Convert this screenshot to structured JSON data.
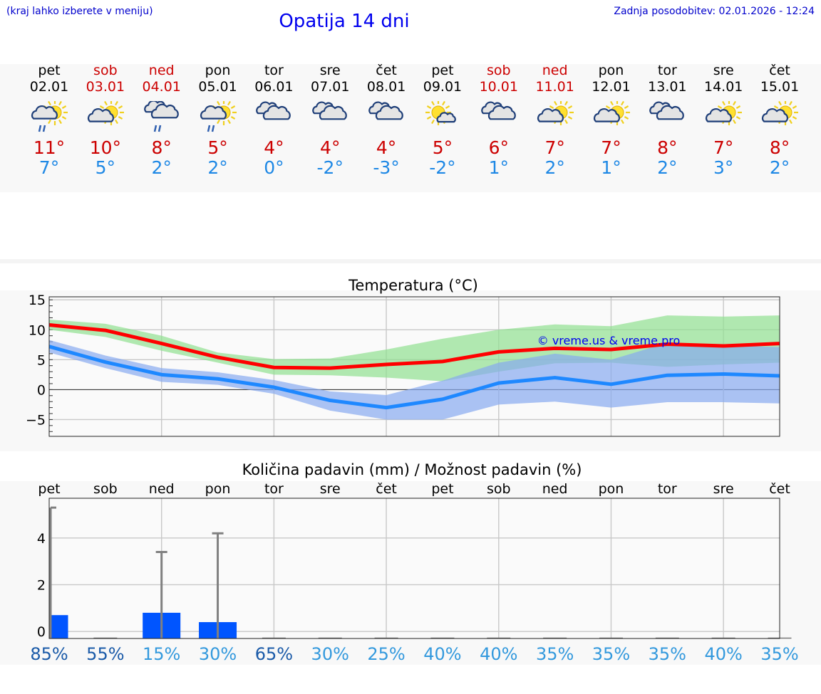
{
  "header": {
    "hint": "(kraj lahko izberete v meniju)",
    "title": "Opatija 14 dni",
    "updated": "Zadnja posodobitev: 02.01.2026 - 12:24"
  },
  "colors": {
    "hi": "#cc0000",
    "lo": "#1e88e5",
    "weekday": "#000000",
    "weekend": "#cc0000",
    "bar": "#0055ff"
  },
  "days": [
    {
      "wd": "pet",
      "date": "02.01",
      "weekend": false,
      "icon": "sun-cloud-rain-icon",
      "hi": "11°",
      "lo": "7°"
    },
    {
      "wd": "sob",
      "date": "03.01",
      "weekend": true,
      "icon": "sun-cloud-icon",
      "hi": "10°",
      "lo": "5°"
    },
    {
      "wd": "ned",
      "date": "04.01",
      "weekend": true,
      "icon": "cloud-rain-icon",
      "hi": "8°",
      "lo": "2°"
    },
    {
      "wd": "pon",
      "date": "05.01",
      "weekend": false,
      "icon": "sun-cloud-rain-icon",
      "hi": "5°",
      "lo": "2°"
    },
    {
      "wd": "tor",
      "date": "06.01",
      "weekend": false,
      "icon": "cloud-icon",
      "hi": "4°",
      "lo": "0°"
    },
    {
      "wd": "sre",
      "date": "07.01",
      "weekend": false,
      "icon": "cloud-icon",
      "hi": "4°",
      "lo": "-2°"
    },
    {
      "wd": "čet",
      "date": "08.01",
      "weekend": false,
      "icon": "cloud-icon",
      "hi": "4°",
      "lo": "-3°"
    },
    {
      "wd": "pet",
      "date": "09.01",
      "weekend": false,
      "icon": "sun-small-cloud-icon",
      "hi": "5°",
      "lo": "-2°"
    },
    {
      "wd": "sob",
      "date": "10.01",
      "weekend": true,
      "icon": "cloud-icon",
      "hi": "6°",
      "lo": "1°"
    },
    {
      "wd": "ned",
      "date": "11.01",
      "weekend": true,
      "icon": "sun-cloud-icon",
      "hi": "7°",
      "lo": "2°"
    },
    {
      "wd": "pon",
      "date": "12.01",
      "weekend": false,
      "icon": "sun-cloud-icon",
      "hi": "7°",
      "lo": "1°"
    },
    {
      "wd": "tor",
      "date": "13.01",
      "weekend": false,
      "icon": "cloud-icon",
      "hi": "8°",
      "lo": "2°"
    },
    {
      "wd": "sre",
      "date": "14.01",
      "weekend": false,
      "icon": "sun-cloud-icon",
      "hi": "7°",
      "lo": "3°"
    },
    {
      "wd": "čet",
      "date": "15.01",
      "weekend": false,
      "icon": "sun-cloud-icon",
      "hi": "8°",
      "lo": "2°"
    }
  ],
  "chart_data": [
    {
      "type": "line",
      "title": "Temperatura (°C)",
      "watermark": "© vreme.us & vreme.pro",
      "xlabel": "",
      "ylabel": "",
      "ylim": [
        -7.8,
        15.5
      ],
      "yticks": [
        15,
        10,
        5,
        0,
        -5
      ],
      "ytick_labels": [
        "15",
        "10",
        "5",
        "0",
        "−5"
      ],
      "x": [
        0,
        1,
        2,
        3,
        4,
        5,
        6,
        7,
        8,
        9,
        10,
        11,
        12,
        13
      ],
      "series": [
        {
          "name": "max",
          "color": "#ff0000",
          "values": [
            10.8,
            9.9,
            7.7,
            5.4,
            3.7,
            3.6,
            4.2,
            4.7,
            6.3,
            6.9,
            6.7,
            7.6,
            7.3,
            7.7
          ],
          "band_low": [
            10.0,
            8.8,
            6.5,
            4.5,
            2.5,
            2.4,
            2.0,
            1.4,
            3.0,
            4.4,
            4.5,
            3.8,
            4.2,
            4.5
          ],
          "band_high": [
            11.7,
            11.0,
            9.0,
            6.2,
            5.1,
            5.2,
            6.7,
            8.5,
            10.0,
            10.9,
            10.6,
            12.4,
            12.2,
            12.4
          ],
          "band_color": "#90e090"
        },
        {
          "name": "min",
          "color": "#1e88ff",
          "values": [
            7.2,
            4.6,
            2.5,
            1.8,
            0.4,
            -1.8,
            -3.0,
            -1.6,
            1.1,
            2.0,
            0.9,
            2.4,
            2.6,
            2.3
          ],
          "band_low": [
            6.2,
            3.6,
            1.3,
            0.8,
            -0.7,
            -3.5,
            -5.0,
            -5.0,
            -2.5,
            -2.0,
            -3.0,
            -2.1,
            -2.1,
            -2.3
          ],
          "band_high": [
            8.3,
            5.7,
            3.6,
            2.9,
            1.6,
            -0.3,
            -0.9,
            1.5,
            4.5,
            6.0,
            5.0,
            7.8,
            7.4,
            7.1
          ],
          "band_color": "#88aaf0"
        }
      ]
    },
    {
      "type": "bar",
      "title": "Količina padavin (mm) / Možnost padavin (%)",
      "categories": [
        "pet",
        "sob",
        "ned",
        "pon",
        "tor",
        "sre",
        "čet",
        "pet",
        "sob",
        "ned",
        "pon",
        "tor",
        "sre",
        "čet"
      ],
      "ylim": [
        -0.3,
        5.7
      ],
      "yticks": [
        0,
        2,
        4
      ],
      "values": [
        0.7,
        0,
        0.8,
        0.4,
        0,
        0,
        0,
        0,
        0,
        0,
        0,
        0,
        0,
        0
      ],
      "whisker_high": [
        5.3,
        0,
        3.4,
        4.2,
        0,
        0,
        0,
        0,
        0,
        0,
        0,
        0,
        0,
        0
      ],
      "probability": [
        "85%",
        "55%",
        "15%",
        "30%",
        "65%",
        "30%",
        "25%",
        "40%",
        "40%",
        "35%",
        "35%",
        "35%",
        "40%",
        "35%"
      ],
      "probability_colors": [
        "#1a5aa8",
        "#1a5aa8",
        "#3399dd",
        "#3399dd",
        "#1a5aa8",
        "#3399dd",
        "#3399dd",
        "#3399dd",
        "#3399dd",
        "#3399dd",
        "#3399dd",
        "#3399dd",
        "#3399dd",
        "#3399dd"
      ]
    }
  ]
}
